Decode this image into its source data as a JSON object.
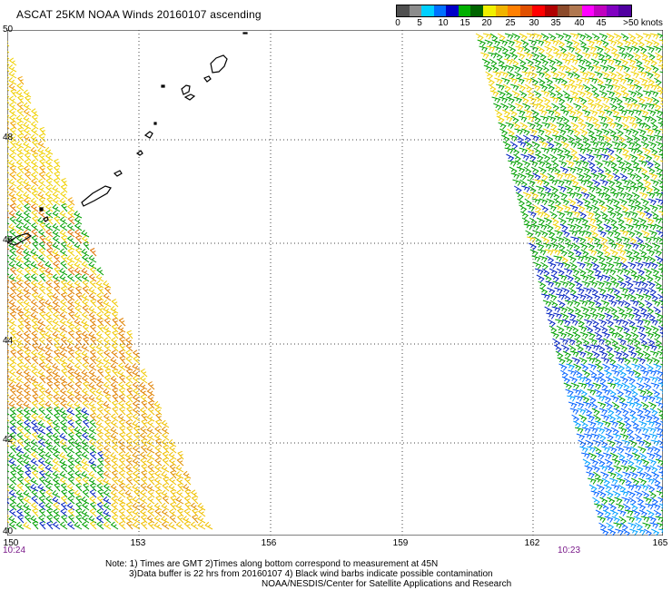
{
  "title": "ASCAT 25KM NOAA Winds 20160107 ascending",
  "legend": {
    "colors": [
      "#505050",
      "#8c8c8c",
      "#00d0ff",
      "#0070ff",
      "#0000c8",
      "#00b000",
      "#006400",
      "#f0f000",
      "#f0b400",
      "#ff8000",
      "#e05000",
      "#ff0000",
      "#b00000",
      "#8b4a2a",
      "#b07850",
      "#ff00ff",
      "#c000c0",
      "#8000c0",
      "#5000a0"
    ],
    "labels": [
      "0",
      "5",
      "10",
      "15",
      "20",
      "25",
      "30",
      "35",
      "40",
      "45",
      ">50 knots"
    ]
  },
  "map": {
    "lat_labels": [
      "50",
      "48",
      "46",
      "44",
      "42",
      "40"
    ],
    "lon_labels": [
      "150",
      "153",
      "156",
      "159",
      "162",
      "165"
    ],
    "left_pass_time": "10:24",
    "right_pass_time": "10:23"
  },
  "notes": {
    "line1": "Note: 1) Times are GMT 2)Times along bottom correspond to measurement at 45N",
    "line2": "3)Data buffer is 22 hrs from 20160107 4) Black wind barbs indicate possible contamination",
    "line3": "NOAA/NESDIS/Center for Satellite Applications and Research"
  }
}
